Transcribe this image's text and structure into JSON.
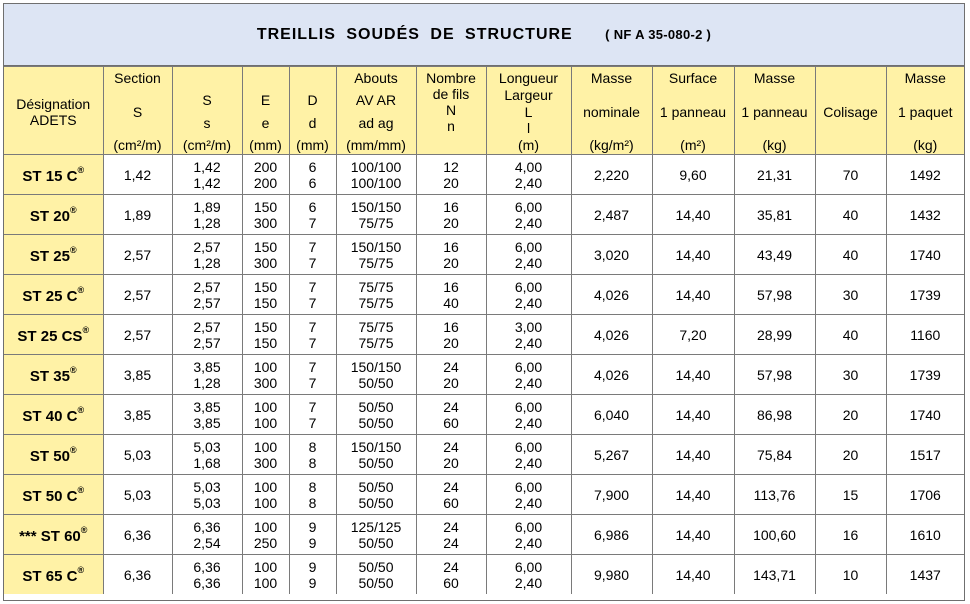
{
  "title": "TREILLIS  SOUDÉS  DE  STRUCTURE",
  "norm": "( NF A 35-080-2 )",
  "columns": [
    {
      "lines": [
        "Désignation",
        "ADETS"
      ],
      "align": "center"
    },
    {
      "lines": [
        "Section",
        "S",
        "(cm²/m)"
      ],
      "align": "spread"
    },
    {
      "lines": [
        "",
        "S",
        "s",
        "(cm²/m)"
      ],
      "align": "spread"
    },
    {
      "lines": [
        "",
        "E",
        "e",
        "(mm)"
      ],
      "align": "spread"
    },
    {
      "lines": [
        "",
        "D",
        "d",
        "(mm)"
      ],
      "align": "spread"
    },
    {
      "lines": [
        "Abouts",
        "AV AR",
        "ad ag",
        "(mm/mm)"
      ],
      "align": "spread"
    },
    {
      "lines": [
        "Nombre",
        "de fils",
        "N",
        "n",
        ""
      ],
      "align": "top"
    },
    {
      "lines": [
        "Longueur",
        "Largeur",
        "L",
        "l",
        "(m)"
      ],
      "align": "spread"
    },
    {
      "lines": [
        "Masse",
        "nominale",
        "(kg/m²)"
      ],
      "align": "spread"
    },
    {
      "lines": [
        "Surface",
        "1 panneau",
        "(m²)"
      ],
      "align": "spread"
    },
    {
      "lines": [
        "Masse",
        "1 panneau",
        "(kg)"
      ],
      "align": "spread"
    },
    {
      "lines": [
        "Colisage"
      ],
      "align": "center"
    },
    {
      "lines": [
        "Masse",
        "1 paquet",
        "(kg)"
      ],
      "align": "spread"
    }
  ],
  "registered_mark": "®",
  "rows": [
    {
      "designation": "ST 15 C",
      "section": "1,42",
      "s": [
        "1,42",
        "1,42"
      ],
      "e": [
        "200",
        "200"
      ],
      "d": [
        "6",
        "6"
      ],
      "abouts": [
        "100/100",
        "100/100"
      ],
      "fils": [
        "12",
        "20"
      ],
      "longueur": [
        "4,00",
        "2,40"
      ],
      "masse_nominale": "2,220",
      "surface": "9,60",
      "masse_panneau": "21,31",
      "colisage": "70",
      "masse_paquet": "1492"
    },
    {
      "designation": "ST 20",
      "section": "1,89",
      "s": [
        "1,89",
        "1,28"
      ],
      "e": [
        "150",
        "300"
      ],
      "d": [
        "6",
        "7"
      ],
      "abouts": [
        "150/150",
        "75/75"
      ],
      "fils": [
        "16",
        "20"
      ],
      "longueur": [
        "6,00",
        "2,40"
      ],
      "masse_nominale": "2,487",
      "surface": "14,40",
      "masse_panneau": "35,81",
      "colisage": "40",
      "masse_paquet": "1432"
    },
    {
      "designation": "ST 25",
      "section": "2,57",
      "s": [
        "2,57",
        "1,28"
      ],
      "e": [
        "150",
        "300"
      ],
      "d": [
        "7",
        "7"
      ],
      "abouts": [
        "150/150",
        "75/75"
      ],
      "fils": [
        "16",
        "20"
      ],
      "longueur": [
        "6,00",
        "2,40"
      ],
      "masse_nominale": "3,020",
      "surface": "14,40",
      "masse_panneau": "43,49",
      "colisage": "40",
      "masse_paquet": "1740"
    },
    {
      "designation": "ST 25 C",
      "section": "2,57",
      "s": [
        "2,57",
        "2,57"
      ],
      "e": [
        "150",
        "150"
      ],
      "d": [
        "7",
        "7"
      ],
      "abouts": [
        "75/75",
        "75/75"
      ],
      "fils": [
        "16",
        "40"
      ],
      "longueur": [
        "6,00",
        "2,40"
      ],
      "masse_nominale": "4,026",
      "surface": "14,40",
      "masse_panneau": "57,98",
      "colisage": "30",
      "masse_paquet": "1739"
    },
    {
      "designation": "ST 25 CS",
      "section": "2,57",
      "s": [
        "2,57",
        "2,57"
      ],
      "e": [
        "150",
        "150"
      ],
      "d": [
        "7",
        "7"
      ],
      "abouts": [
        "75/75",
        "75/75"
      ],
      "fils": [
        "16",
        "20"
      ],
      "longueur": [
        "3,00",
        "2,40"
      ],
      "masse_nominale": "4,026",
      "surface": "7,20",
      "masse_panneau": "28,99",
      "colisage": "40",
      "masse_paquet": "1160"
    },
    {
      "designation": "ST 35",
      "section": "3,85",
      "s": [
        "3,85",
        "1,28"
      ],
      "e": [
        "100",
        "300"
      ],
      "d": [
        "7",
        "7"
      ],
      "abouts": [
        "150/150",
        "50/50"
      ],
      "fils": [
        "24",
        "20"
      ],
      "longueur": [
        "6,00",
        "2,40"
      ],
      "masse_nominale": "4,026",
      "surface": "14,40",
      "masse_panneau": "57,98",
      "colisage": "30",
      "masse_paquet": "1739"
    },
    {
      "designation": "ST 40 C",
      "section": "3,85",
      "s": [
        "3,85",
        "3,85"
      ],
      "e": [
        "100",
        "100"
      ],
      "d": [
        "7",
        "7"
      ],
      "abouts": [
        "50/50",
        "50/50"
      ],
      "fils": [
        "24",
        "60"
      ],
      "longueur": [
        "6,00",
        "2,40"
      ],
      "masse_nominale": "6,040",
      "surface": "14,40",
      "masse_panneau": "86,98",
      "colisage": "20",
      "masse_paquet": "1740"
    },
    {
      "designation": "ST 50",
      "section": "5,03",
      "s": [
        "5,03",
        "1,68"
      ],
      "e": [
        "100",
        "300"
      ],
      "d": [
        "8",
        "8"
      ],
      "abouts": [
        "150/150",
        "50/50"
      ],
      "fils": [
        "24",
        "20"
      ],
      "longueur": [
        "6,00",
        "2,40"
      ],
      "masse_nominale": "5,267",
      "surface": "14,40",
      "masse_panneau": "75,84",
      "colisage": "20",
      "masse_paquet": "1517"
    },
    {
      "designation": "ST 50 C",
      "section": "5,03",
      "s": [
        "5,03",
        "5,03"
      ],
      "e": [
        "100",
        "100"
      ],
      "d": [
        "8",
        "8"
      ],
      "abouts": [
        "50/50",
        "50/50"
      ],
      "fils": [
        "24",
        "60"
      ],
      "longueur": [
        "6,00",
        "2,40"
      ],
      "masse_nominale": "7,900",
      "surface": "14,40",
      "masse_panneau": "113,76",
      "colisage": "15",
      "masse_paquet": "1706"
    },
    {
      "designation": "*** ST 60",
      "section": "6,36",
      "s": [
        "6,36",
        "2,54"
      ],
      "e": [
        "100",
        "250"
      ],
      "d": [
        "9",
        "9"
      ],
      "abouts": [
        "125/125",
        "50/50"
      ],
      "fils": [
        "24",
        "24"
      ],
      "longueur": [
        "6,00",
        "2,40"
      ],
      "masse_nominale": "6,986",
      "surface": "14,40",
      "masse_panneau": "100,60",
      "colisage": "16",
      "masse_paquet": "1610"
    },
    {
      "designation": "ST 65 C",
      "section": "6,36",
      "s": [
        "6,36",
        "6,36"
      ],
      "e": [
        "100",
        "100"
      ],
      "d": [
        "9",
        "9"
      ],
      "abouts": [
        "50/50",
        "50/50"
      ],
      "fils": [
        "24",
        "60"
      ],
      "longueur": [
        "6,00",
        "2,40"
      ],
      "masse_nominale": "9,980",
      "surface": "14,40",
      "masse_panneau": "143,71",
      "colisage": "10",
      "masse_paquet": "1437"
    }
  ]
}
